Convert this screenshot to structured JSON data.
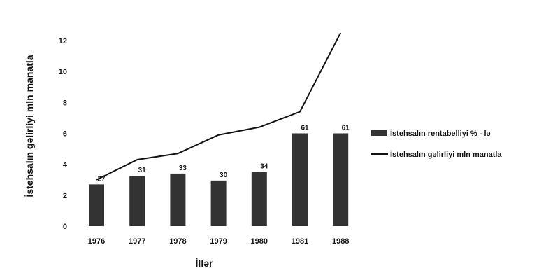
{
  "chart_data": {
    "type": "bar",
    "xlabel": "İllər",
    "ylabel": "İstehsalın gəlirliyi mln manatla",
    "categories": [
      "1976",
      "1977",
      "1978",
      "1979",
      "1980",
      "1981",
      "1988"
    ],
    "ylim": [
      0,
      12
    ],
    "yticks": [
      0,
      2,
      4,
      6,
      8,
      10,
      12
    ],
    "grid": false,
    "legend_position": "right",
    "series": [
      {
        "name": "İstehsalın rentabelliyi % - lə",
        "kind": "bar",
        "color": "#333333",
        "values": [
          2.7,
          3.25,
          3.4,
          2.95,
          3.5,
          6.0,
          6.0
        ],
        "labels": [
          "27",
          "31",
          "33",
          "30",
          "34",
          "61",
          "61"
        ]
      },
      {
        "name": "İstehsalın gəlirliyi mln manatla",
        "kind": "line",
        "color": "#111111",
        "values": [
          3.0,
          4.3,
          4.7,
          5.9,
          6.4,
          7.4,
          12.5
        ]
      }
    ]
  }
}
